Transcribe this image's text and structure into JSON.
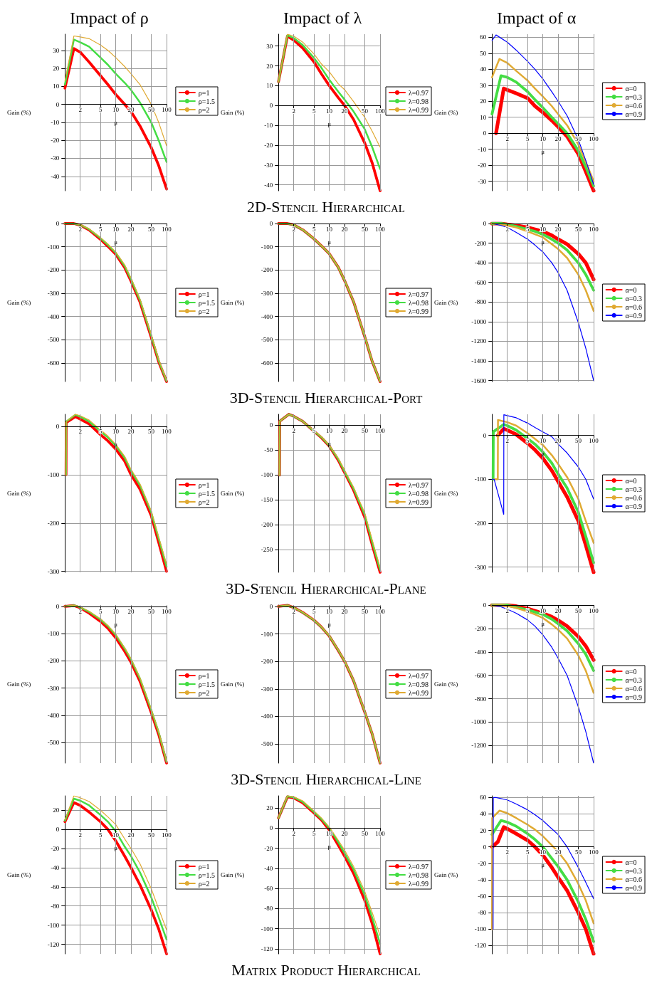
{
  "chart_data": [
    {
      "type": "line",
      "title": "Impact of ρ",
      "xlabel": "μ",
      "ylabel": "Gain (%)",
      "log": "x",
      "grid": true,
      "legend": "right",
      "marker": "none",
      "x": [
        1,
        1.5,
        2,
        3,
        5,
        7,
        10,
        15,
        20,
        30,
        50,
        70,
        100
      ],
      "xlim": [
        1,
        100
      ],
      "xticks": [
        2,
        5,
        10,
        20,
        50,
        100
      ],
      "ylim": [
        -48,
        39
      ],
      "yticks": [
        -40,
        -30,
        -20,
        -10,
        0,
        10,
        20,
        30
      ],
      "series": [
        {
          "name": "ρ=1",
          "color": "#ff0000",
          "values": [
            9,
            31,
            29,
            23.5,
            16,
            11,
            5.5,
            0,
            -4,
            -12,
            -24,
            -34,
            -47
          ]
        },
        {
          "name": "ρ=1.5",
          "color": "#44dd44",
          "values": [
            11,
            36,
            34.5,
            32,
            26,
            22,
            17,
            12,
            8,
            1,
            -10,
            -20,
            -32
          ]
        },
        {
          "name": "ρ=2",
          "color": "#e0aa33",
          "values": [
            13,
            38,
            37.5,
            36.5,
            33,
            30,
            26,
            21,
            17,
            11,
            0,
            -10,
            -23
          ]
        }
      ]
    },
    {
      "type": "line",
      "title": "Impact of λ",
      "xlabel": "μ",
      "ylabel": "Gain (%)",
      "log": "x",
      "grid": true,
      "legend": "right",
      "marker": "none",
      "x": [
        1,
        1.5,
        2,
        3,
        5,
        7,
        10,
        15,
        20,
        30,
        50,
        70,
        100
      ],
      "xlim": [
        1,
        100
      ],
      "xticks": [
        2,
        5,
        10,
        20,
        50,
        100
      ],
      "ylim": [
        -43,
        36
      ],
      "yticks": [
        -40,
        -30,
        -20,
        -10,
        0,
        10,
        20,
        30
      ],
      "annotations": [
        "2D-Stencil Hierarchical"
      ],
      "series": [
        {
          "name": "λ=0.97",
          "color": "#ff0000",
          "values": [
            12,
            35,
            33,
            29,
            22,
            16,
            10,
            4,
            0,
            -7,
            -19,
            -29,
            -43
          ]
        },
        {
          "name": "λ=0.98",
          "color": "#44dd44",
          "values": [
            12,
            35.5,
            34,
            30.5,
            24,
            19,
            13,
            7,
            3,
            -3,
            -12,
            -21,
            -32
          ]
        },
        {
          "name": "λ=0.99",
          "color": "#e0aa33",
          "values": [
            12,
            36,
            35,
            32,
            26,
            21,
            17,
            11,
            8,
            2,
            -6,
            -13,
            -21
          ]
        }
      ]
    },
    {
      "type": "line",
      "title": "Impact of α",
      "xlabel": "μ",
      "ylabel": "Gain (%)",
      "log": "x",
      "grid": true,
      "legend": "right",
      "marker": "none",
      "x": [
        1,
        1.5,
        2,
        3,
        5,
        7,
        10,
        15,
        20,
        30,
        50,
        70,
        100
      ],
      "xlim": [
        1,
        100
      ],
      "xticks": [
        2,
        5,
        10,
        20,
        50,
        100
      ],
      "ylim": [
        -36,
        62
      ],
      "yticks": [
        -30,
        -20,
        -10,
        0,
        10,
        20,
        30,
        40,
        50,
        60
      ],
      "series": [
        {
          "name": "α=0",
          "color": "#ff0000",
          "x": [
            1.2,
            1.7,
            3,
            5,
            7,
            10,
            15,
            20,
            30,
            50,
            70,
            100
          ],
          "values": [
            0,
            28,
            25,
            22,
            17,
            13,
            8,
            4,
            -2,
            -13,
            -24,
            -36
          ]
        },
        {
          "name": "α=0.3",
          "color": "#44dd44",
          "values": [
            12,
            36,
            35,
            32,
            26,
            21,
            16,
            10,
            6,
            0,
            -11,
            -21,
            -33
          ]
        },
        {
          "name": "α=0.6",
          "color": "#e0aa33",
          "x": [
            1,
            1.4,
            2,
            3,
            5,
            7,
            10,
            15,
            20,
            30,
            50,
            70,
            100
          ],
          "values": [
            35,
            46.5,
            44,
            39,
            33,
            28,
            23,
            17,
            12,
            5,
            -7,
            -18,
            -30
          ]
        },
        {
          "name": "α=0.9",
          "color": "#0000ff",
          "x": [
            1,
            1.2,
            2,
            3,
            5,
            7,
            10,
            15,
            20,
            30,
            50,
            70,
            100
          ],
          "values": [
            58,
            61.5,
            57,
            52,
            45,
            40,
            34,
            26,
            20,
            11,
            -4,
            -17,
            -32
          ]
        }
      ]
    },
    {
      "type": "line",
      "xlabel": "μ",
      "ylabel": "Gain (%)",
      "log": "x",
      "grid": true,
      "legend": "right",
      "marker": "none",
      "x": [
        1,
        1.5,
        2,
        3,
        5,
        7,
        10,
        15,
        20,
        30,
        50,
        70,
        100
      ],
      "xlim": [
        1,
        100
      ],
      "xticks": [
        2,
        5,
        10,
        20,
        50,
        100
      ],
      "ylim": [
        -680,
        0
      ],
      "yticks": [
        -600,
        -500,
        -400,
        -300,
        -200,
        -100,
        0
      ],
      "series": [
        {
          "name": "ρ=1",
          "color": "#ff0000",
          "values": [
            0,
            0,
            -7,
            -28,
            -68,
            -98,
            -132,
            -190,
            -248,
            -338,
            -490,
            -595,
            -680
          ]
        },
        {
          "name": "ρ=1.5",
          "color": "#44dd44",
          "values": [
            0,
            0,
            -6,
            -25,
            -63,
            -92,
            -126,
            -183,
            -240,
            -330,
            -483,
            -590,
            -678
          ]
        },
        {
          "name": "ρ=2",
          "color": "#e0aa33",
          "values": [
            null,
            0,
            -5,
            -23,
            -60,
            -88,
            -122,
            -178,
            -235,
            -325,
            -478,
            -585,
            -675
          ]
        }
      ]
    },
    {
      "type": "line",
      "xlabel": "μ",
      "ylabel": "Gain (%)",
      "log": "x",
      "grid": true,
      "legend": "right",
      "marker": "none",
      "x": [
        1,
        1.5,
        2,
        3,
        5,
        7,
        10,
        15,
        20,
        30,
        50,
        70,
        100
      ],
      "xlim": [
        1,
        100
      ],
      "xticks": [
        2,
        5,
        10,
        20,
        50,
        100
      ],
      "ylim": [
        -680,
        0
      ],
      "yticks": [
        -600,
        -500,
        -400,
        -300,
        -200,
        -100,
        0
      ],
      "annotations": [
        "3D-Stencil Hierarchical-Port"
      ],
      "series": [
        {
          "name": "λ=0.97",
          "color": "#ff0000",
          "values": [
            0,
            0,
            -6,
            -27,
            -66,
            -96,
            -130,
            -188,
            -246,
            -336,
            -488,
            -594,
            -680
          ]
        },
        {
          "name": "λ=0.98",
          "color": "#44dd44",
          "values": [
            0,
            0,
            -6,
            -27,
            -66,
            -96,
            -130,
            -188,
            -245,
            -335,
            -487,
            -593,
            -679
          ]
        },
        {
          "name": "λ=0.99",
          "color": "#e0aa33",
          "values": [
            null,
            0,
            -6,
            -26,
            -65,
            -95,
            -129,
            -187,
            -244,
            -334,
            -486,
            -592,
            -678
          ]
        }
      ]
    },
    {
      "type": "line",
      "xlabel": "μ",
      "ylabel": "Gain (%)",
      "log": "x",
      "grid": true,
      "legend": "right",
      "marker": "none",
      "x": [
        1,
        1.5,
        2,
        3,
        5,
        7,
        10,
        15,
        20,
        30,
        50,
        70,
        100
      ],
      "xlim": [
        1,
        100
      ],
      "xticks": [
        2,
        5,
        10,
        20,
        50,
        100
      ],
      "ylim": [
        -1610,
        0
      ],
      "yticks": [
        -1600,
        -1400,
        -1200,
        -1000,
        -800,
        -600,
        -400,
        -200,
        0
      ],
      "series": [
        {
          "name": "α=0",
          "color": "#ff0000",
          "values": [
            0,
            0,
            -10,
            -20,
            -40,
            -60,
            -80,
            -120,
            -160,
            -210,
            -310,
            -400,
            -570
          ]
        },
        {
          "name": "α=0.3",
          "color": "#44dd44",
          "values": [
            0,
            0,
            -10,
            -30,
            -60,
            -80,
            -110,
            -160,
            -200,
            -270,
            -400,
            -520,
            -680
          ]
        },
        {
          "name": "α=0.6",
          "color": "#e0aa33",
          "values": [
            0,
            -10,
            -20,
            -40,
            -80,
            -110,
            -140,
            -210,
            -260,
            -350,
            -520,
            -680,
            -890
          ]
        },
        {
          "name": "α=0.9",
          "color": "#0000ff",
          "values": [
            0,
            -20,
            -40,
            -90,
            -160,
            -220,
            -290,
            -400,
            -500,
            -680,
            -1010,
            -1270,
            -1600
          ]
        }
      ]
    },
    {
      "type": "line",
      "xlabel": "μ",
      "ylabel": "Gain (%)",
      "log": "x",
      "grid": true,
      "legend": "right",
      "marker": "none",
      "x": [
        1.05,
        1.06,
        1.6,
        2,
        3,
        5,
        7,
        10,
        15,
        20,
        30,
        50,
        70,
        100
      ],
      "xlim": [
        1,
        100
      ],
      "xticks": [
        2,
        5,
        10,
        20,
        50,
        100
      ],
      "ylim": [
        -302,
        25
      ],
      "yticks": [
        -300,
        -200,
        -100,
        0
      ],
      "series": [
        {
          "name": "ρ=1",
          "color": "#ff0000",
          "values": [
            -100,
            8,
            20,
            15,
            5,
            -17,
            -30,
            -47,
            -72,
            -100,
            -130,
            -185,
            -240,
            -300
          ]
        },
        {
          "name": "ρ=1.5",
          "color": "#44dd44",
          "values": [
            -100,
            10,
            24,
            20,
            10,
            -10,
            -23,
            -40,
            -65,
            -92,
            -122,
            -178,
            -232,
            -290
          ]
        },
        {
          "name": "ρ=2",
          "color": "#e0aa33",
          "values": [
            -100,
            10,
            25,
            22,
            13,
            -7,
            -20,
            -37,
            -62,
            -89,
            -119,
            -175,
            -229,
            -285
          ]
        }
      ]
    },
    {
      "type": "line",
      "xlabel": "μ",
      "ylabel": "Gain (%)",
      "log": "x",
      "grid": true,
      "legend": "right",
      "marker": "none",
      "x": [
        1.05,
        1.06,
        1.6,
        2,
        3,
        5,
        7,
        10,
        15,
        20,
        30,
        50,
        70,
        100
      ],
      "xlim": [
        1,
        100
      ],
      "xticks": [
        2,
        5,
        10,
        20,
        50,
        100
      ],
      "ylim": [
        -295,
        22
      ],
      "yticks": [
        -250,
        -200,
        -150,
        -100,
        -50,
        0
      ],
      "annotations": [
        "3D-Stencil Hierarchical-Plane"
      ],
      "series": [
        {
          "name": "λ=0.97",
          "color": "#ff0000",
          "values": [
            -100,
            8,
            22,
            18,
            8,
            -12,
            -25,
            -42,
            -70,
            -95,
            -130,
            -185,
            -240,
            -295
          ]
        },
        {
          "name": "λ=0.98",
          "color": "#44dd44",
          "values": [
            -100,
            8,
            22,
            18,
            8,
            -12,
            -24,
            -41,
            -68,
            -93,
            -127,
            -180,
            -235,
            -290
          ]
        },
        {
          "name": "λ=0.99",
          "color": "#e0aa33",
          "values": [
            -100,
            8,
            22,
            18,
            8,
            -11,
            -23,
            -40,
            -66,
            -90,
            -124,
            -176,
            -230,
            -285
          ]
        }
      ]
    },
    {
      "type": "line",
      "xlabel": "μ",
      "ylabel": "Gain (%)",
      "log": "x",
      "grid": true,
      "legend": "right",
      "marker": "none",
      "xlim": [
        1,
        100
      ],
      "xticks": [
        2,
        5,
        10,
        20,
        50,
        100
      ],
      "ylim": [
        -312,
        48
      ],
      "yticks": [
        -300,
        -200,
        -100,
        0
      ],
      "series": [
        {
          "name": "α=0",
          "color": "#ff0000",
          "x": [
            1.3,
            1.7,
            2,
            3,
            5,
            7,
            10,
            15,
            20,
            30,
            50,
            70,
            100
          ],
          "values": [
            0,
            15,
            12,
            2,
            -18,
            -33,
            -52,
            -80,
            -105,
            -140,
            -195,
            -250,
            -312
          ]
        },
        {
          "name": "α=0.3",
          "color": "#44dd44",
          "x": [
            1.05,
            1.06,
            1.7,
            2,
            3,
            5,
            7,
            10,
            15,
            20,
            30,
            50,
            70,
            100
          ],
          "values": [
            -100,
            8,
            25,
            22,
            12,
            -7,
            -20,
            -38,
            -63,
            -88,
            -120,
            -175,
            -230,
            -290
          ]
        },
        {
          "name": "α=0.6",
          "color": "#e0aa33",
          "x": [
            1.1,
            1.3,
            1.31,
            2,
            3,
            5,
            7,
            10,
            15,
            20,
            30,
            50,
            70,
            100
          ],
          "values": [
            -100,
            -100,
            35,
            30,
            22,
            5,
            -8,
            -22,
            -45,
            -65,
            -95,
            -145,
            -195,
            -245
          ]
        },
        {
          "name": "α=0.9",
          "color": "#0000ff",
          "x": [
            1,
            1.1,
            1.7,
            1.71,
            2,
            3,
            5,
            7,
            10,
            15,
            20,
            30,
            50,
            70,
            100
          ],
          "values": [
            -100,
            -100,
            -180,
            47,
            45,
            40,
            28,
            18,
            8,
            -3,
            -20,
            -40,
            -72,
            -100,
            -145
          ]
        }
      ]
    },
    {
      "type": "line",
      "xlabel": "μ",
      "ylabel": "Gain (%)",
      "log": "x",
      "grid": true,
      "legend": "right",
      "marker": "none",
      "x": [
        1,
        1.5,
        2,
        3,
        5,
        7,
        10,
        15,
        20,
        30,
        50,
        70,
        100
      ],
      "xlim": [
        1,
        100
      ],
      "xticks": [
        2,
        5,
        10,
        20,
        50,
        100
      ],
      "ylim": [
        -575,
        5
      ],
      "yticks": [
        -500,
        -400,
        -300,
        -200,
        -100,
        0
      ],
      "series": [
        {
          "name": "ρ=1",
          "color": "#ff0000",
          "values": [
            0,
            3,
            -5,
            -25,
            -55,
            -80,
            -115,
            -165,
            -205,
            -275,
            -390,
            -470,
            -575
          ]
        },
        {
          "name": "ρ=1.5",
          "color": "#44dd44",
          "values": [
            0,
            4,
            -3,
            -20,
            -48,
            -72,
            -105,
            -155,
            -195,
            -265,
            -380,
            -462,
            -570
          ]
        },
        {
          "name": "ρ=2",
          "color": "#e0aa33",
          "values": [
            0,
            4,
            -2,
            -18,
            -45,
            -70,
            -102,
            -152,
            -192,
            -262,
            -377,
            -460,
            -568
          ]
        }
      ]
    },
    {
      "type": "line",
      "xlabel": "μ",
      "ylabel": "Gain (%)",
      "log": "x",
      "grid": true,
      "legend": "right",
      "marker": "none",
      "x": [
        1,
        1.5,
        2,
        3,
        5,
        7,
        10,
        15,
        20,
        30,
        50,
        70,
        100
      ],
      "xlim": [
        1,
        100
      ],
      "xticks": [
        2,
        5,
        10,
        20,
        50,
        100
      ],
      "ylim": [
        -570,
        5
      ],
      "yticks": [
        -500,
        -400,
        -300,
        -200,
        -100,
        0
      ],
      "annotations": [
        "3D-Stencil Hierarchical-Line"
      ],
      "series": [
        {
          "name": "λ=0.97",
          "color": "#ff0000",
          "values": [
            0,
            4,
            -4,
            -22,
            -50,
            -75,
            -108,
            -160,
            -200,
            -270,
            -385,
            -465,
            -570
          ]
        },
        {
          "name": "λ=0.98",
          "color": "#44dd44",
          "values": [
            0,
            4,
            -4,
            -22,
            -50,
            -75,
            -107,
            -159,
            -199,
            -269,
            -384,
            -464,
            -569
          ]
        },
        {
          "name": "λ=0.99",
          "color": "#e0aa33",
          "values": [
            0,
            4,
            -4,
            -21,
            -49,
            -74,
            -106,
            -158,
            -198,
            -268,
            -383,
            -463,
            -568
          ]
        }
      ]
    },
    {
      "type": "line",
      "xlabel": "μ",
      "ylabel": "Gain (%)",
      "log": "x",
      "grid": true,
      "legend": "right",
      "marker": "none",
      "x": [
        1,
        1.5,
        2,
        3,
        5,
        7,
        10,
        15,
        20,
        30,
        50,
        70,
        100
      ],
      "xlim": [
        1,
        100
      ],
      "xticks": [
        2,
        5,
        10,
        20,
        50,
        100
      ],
      "ylim": [
        -1350,
        0
      ],
      "yticks": [
        -1200,
        -1000,
        -800,
        -600,
        -400,
        -200,
        0
      ],
      "series": [
        {
          "name": "α=0",
          "color": "#ff0000",
          "values": [
            0,
            0,
            0,
            -10,
            -30,
            -50,
            -70,
            -100,
            -130,
            -180,
            -270,
            -350,
            -470
          ]
        },
        {
          "name": "α=0.3",
          "color": "#44dd44",
          "values": [
            0,
            0,
            0,
            -20,
            -40,
            -60,
            -80,
            -120,
            -160,
            -220,
            -330,
            -420,
            -560
          ]
        },
        {
          "name": "α=0.6",
          "color": "#e0aa33",
          "values": [
            0,
            0,
            -8,
            -25,
            -55,
            -80,
            -110,
            -165,
            -210,
            -285,
            -430,
            -560,
            -750
          ]
        },
        {
          "name": "α=0.9",
          "color": "#0000ff",
          "values": [
            0,
            -15,
            -35,
            -70,
            -127,
            -180,
            -255,
            -360,
            -455,
            -600,
            -870,
            -1080,
            -1350
          ]
        }
      ]
    },
    {
      "type": "line",
      "xlabel": "μ",
      "ylabel": "Gain (%)",
      "log": "x",
      "grid": true,
      "legend": "right",
      "marker": "none",
      "x": [
        1,
        1.5,
        2,
        3,
        5,
        7,
        10,
        15,
        20,
        30,
        50,
        70,
        100
      ],
      "xlim": [
        1,
        100
      ],
      "xticks": [
        2,
        5,
        10,
        20,
        50,
        100
      ],
      "ylim": [
        -130,
        35
      ],
      "yticks": [
        -120,
        -100,
        -80,
        -60,
        -40,
        -20,
        0,
        20
      ],
      "series": [
        {
          "name": "ρ=1",
          "color": "#ff0000",
          "values": [
            8,
            28,
            25,
            18,
            8,
            0,
            -12,
            -28,
            -40,
            -58,
            -84,
            -104,
            -130
          ]
        },
        {
          "name": "ρ=1.5",
          "color": "#44dd44",
          "values": [
            9,
            32,
            30,
            25,
            15,
            8,
            -2,
            -18,
            -28,
            -45,
            -71,
            -92,
            -115
          ]
        },
        {
          "name": "ρ=2",
          "color": "#e0aa33",
          "values": [
            10,
            35,
            33,
            29,
            20,
            13,
            5,
            -10,
            -20,
            -36,
            -62,
            -83,
            -105
          ]
        }
      ]
    },
    {
      "type": "line",
      "xlabel": "μ",
      "ylabel": "Gain (%)",
      "log": "x",
      "grid": true,
      "legend": "right",
      "marker": "none",
      "x": [
        1,
        1.5,
        2,
        3,
        5,
        7,
        10,
        15,
        20,
        30,
        50,
        70,
        100
      ],
      "xlim": [
        1,
        100
      ],
      "xticks": [
        2,
        5,
        10,
        20,
        50,
        100
      ],
      "ylim": [
        -125,
        32
      ],
      "yticks": [
        -120,
        -100,
        -80,
        -60,
        -40,
        -20,
        0,
        20
      ],
      "annotations": [
        "Matrix Product Hierarchical"
      ],
      "series": [
        {
          "name": "λ=0.97",
          "color": "#ff0000",
          "values": [
            10,
            31,
            30,
            25,
            15,
            8,
            -2,
            -17,
            -28,
            -45,
            -72,
            -95,
            -125
          ]
        },
        {
          "name": "λ=0.98",
          "color": "#44dd44",
          "values": [
            10,
            31.5,
            30.5,
            26,
            16,
            9,
            0,
            -14,
            -25,
            -41,
            -67,
            -89,
            -115
          ]
        },
        {
          "name": "λ=0.99",
          "color": "#e0aa33",
          "values": [
            10,
            32,
            31,
            27,
            17,
            10,
            1,
            -12,
            -22,
            -38,
            -63,
            -84,
            -107
          ]
        }
      ]
    },
    {
      "type": "line",
      "xlabel": "μ",
      "ylabel": "Gain (%)",
      "log": "x",
      "grid": true,
      "legend": "right",
      "marker": "none",
      "xlim": [
        1,
        100
      ],
      "xticks": [
        2,
        5,
        10,
        20,
        50,
        100
      ],
      "ylim": [
        -130,
        62
      ],
      "yticks": [
        -120,
        -100,
        -80,
        -60,
        -40,
        -20,
        0,
        20,
        40,
        60
      ],
      "series": [
        {
          "name": "α=0",
          "color": "#ff0000",
          "x": [
            1,
            1.3,
            1.7,
            2,
            3,
            5,
            7,
            10,
            15,
            20,
            30,
            50,
            70,
            100
          ],
          "values": [
            0,
            6,
            24,
            22,
            16,
            8,
            0,
            -10,
            -25,
            -37,
            -53,
            -80,
            -100,
            -130
          ]
        },
        {
          "name": "α=0.3",
          "color": "#44dd44",
          "x": [
            1,
            1.5,
            2,
            3,
            5,
            7,
            10,
            15,
            20,
            30,
            50,
            70,
            100
          ],
          "values": [
            15,
            32,
            30,
            25,
            16,
            9,
            0,
            -14,
            -24,
            -40,
            -67,
            -88,
            -115
          ]
        },
        {
          "name": "α=0.6",
          "color": "#e0aa33",
          "x": [
            1,
            1.01,
            1.4,
            2,
            3,
            5,
            7,
            10,
            15,
            20,
            30,
            50,
            70,
            100
          ],
          "values": [
            -100,
            35,
            44,
            41,
            35,
            27,
            21,
            13,
            2,
            -6,
            -20,
            -45,
            -65,
            -93
          ]
        },
        {
          "name": "α=0.9",
          "color": "#0000ff",
          "x": [
            1.05,
            1.06,
            1.2,
            2,
            3,
            5,
            7,
            10,
            15,
            20,
            30,
            50,
            70,
            100
          ],
          "values": [
            -100,
            60,
            60,
            57,
            52,
            45,
            39,
            32,
            22,
            15,
            0,
            -25,
            -43,
            -63
          ]
        }
      ]
    }
  ]
}
